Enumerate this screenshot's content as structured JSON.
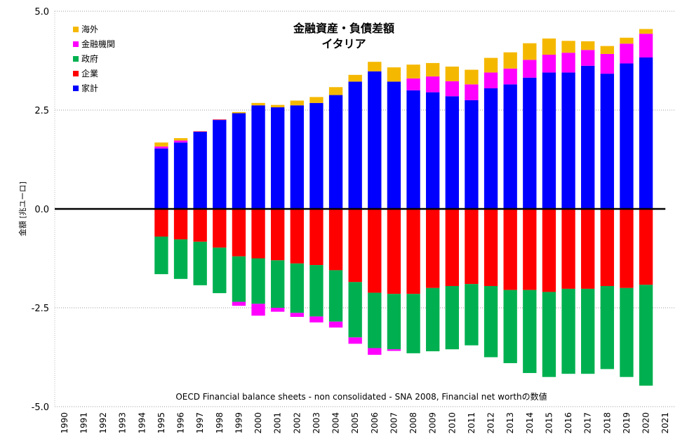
{
  "chart_data": {
    "type": "bar",
    "stacked": true,
    "title": "金融資産・負債差額",
    "subtitle": "イタリア",
    "ylabel": "金額 [兆ユーロ]",
    "note": "OECD Financial balance sheets - non consolidated - SNA 2008, Financial net worthの数値",
    "ylim": [
      -5.0,
      5.0
    ],
    "yticks": [
      5.0,
      2.5,
      0.0,
      -2.5,
      -5.0
    ],
    "ytick_labels": [
      "5.0",
      "2.5",
      "0.0",
      "-2.5",
      "-5.0"
    ],
    "grid": "horizontal-dotted",
    "legend_position": "top-left",
    "categories": [
      "1990",
      "1991",
      "1992",
      "1993",
      "1994",
      "1995",
      "1996",
      "1997",
      "1998",
      "1999",
      "2000",
      "2001",
      "2002",
      "2003",
      "2004",
      "2005",
      "2006",
      "2007",
      "2008",
      "2009",
      "2010",
      "2011",
      "2012",
      "2013",
      "2014",
      "2015",
      "2016",
      "2017",
      "2018",
      "2019",
      "2020",
      "2021"
    ],
    "series": [
      {
        "name": "海外",
        "color": "#f5b800",
        "values": [
          null,
          null,
          null,
          null,
          null,
          0.1,
          0.06,
          0.01,
          0.01,
          0.03,
          0.06,
          0.06,
          0.12,
          0.15,
          0.2,
          0.17,
          0.24,
          0.36,
          0.35,
          0.34,
          0.37,
          0.37,
          0.37,
          0.41,
          0.42,
          0.41,
          0.3,
          0.22,
          0.2,
          0.15,
          0.12,
          null
        ]
      },
      {
        "name": "金融機関",
        "color": "#ff00ff",
        "values": [
          null,
          null,
          null,
          null,
          null,
          0.05,
          0.05,
          0.01,
          0.01,
          -0.1,
          -0.3,
          -0.1,
          -0.1,
          -0.15,
          -0.15,
          -0.16,
          -0.17,
          -0.04,
          0.3,
          0.4,
          0.38,
          0.4,
          0.4,
          0.4,
          0.45,
          0.45,
          0.5,
          0.4,
          0.5,
          0.5,
          0.6,
          null
        ]
      },
      {
        "name": "政府",
        "color": "#00b050",
        "values": [
          null,
          null,
          null,
          null,
          null,
          -0.95,
          -1.0,
          -1.1,
          -1.15,
          -1.15,
          -1.15,
          -1.2,
          -1.25,
          -1.3,
          -1.3,
          -1.4,
          -1.4,
          -1.4,
          -1.5,
          -1.6,
          -1.6,
          -1.55,
          -1.8,
          -1.85,
          -2.1,
          -2.15,
          -2.15,
          -2.15,
          -2.1,
          -2.25,
          -2.55,
          null
        ]
      },
      {
        "name": "企業",
        "color": "#ff0000",
        "values": [
          null,
          null,
          null,
          null,
          null,
          -0.7,
          -0.77,
          -0.83,
          -0.98,
          -1.2,
          -1.25,
          -1.3,
          -1.38,
          -1.42,
          -1.55,
          -1.85,
          -2.12,
          -2.15,
          -2.15,
          -2.0,
          -1.95,
          -1.9,
          -1.95,
          -2.05,
          -2.05,
          -2.1,
          -2.02,
          -2.02,
          -1.95,
          -2.0,
          -1.92,
          null
        ]
      },
      {
        "name": "家計",
        "color": "#0000ff",
        "values": [
          null,
          null,
          null,
          null,
          null,
          1.53,
          1.68,
          1.95,
          2.25,
          2.42,
          2.62,
          2.57,
          2.62,
          2.68,
          2.88,
          3.22,
          3.48,
          3.22,
          3.0,
          2.95,
          2.85,
          2.75,
          3.05,
          3.15,
          3.32,
          3.45,
          3.45,
          3.62,
          3.42,
          3.68,
          3.83,
          null
        ]
      }
    ]
  }
}
